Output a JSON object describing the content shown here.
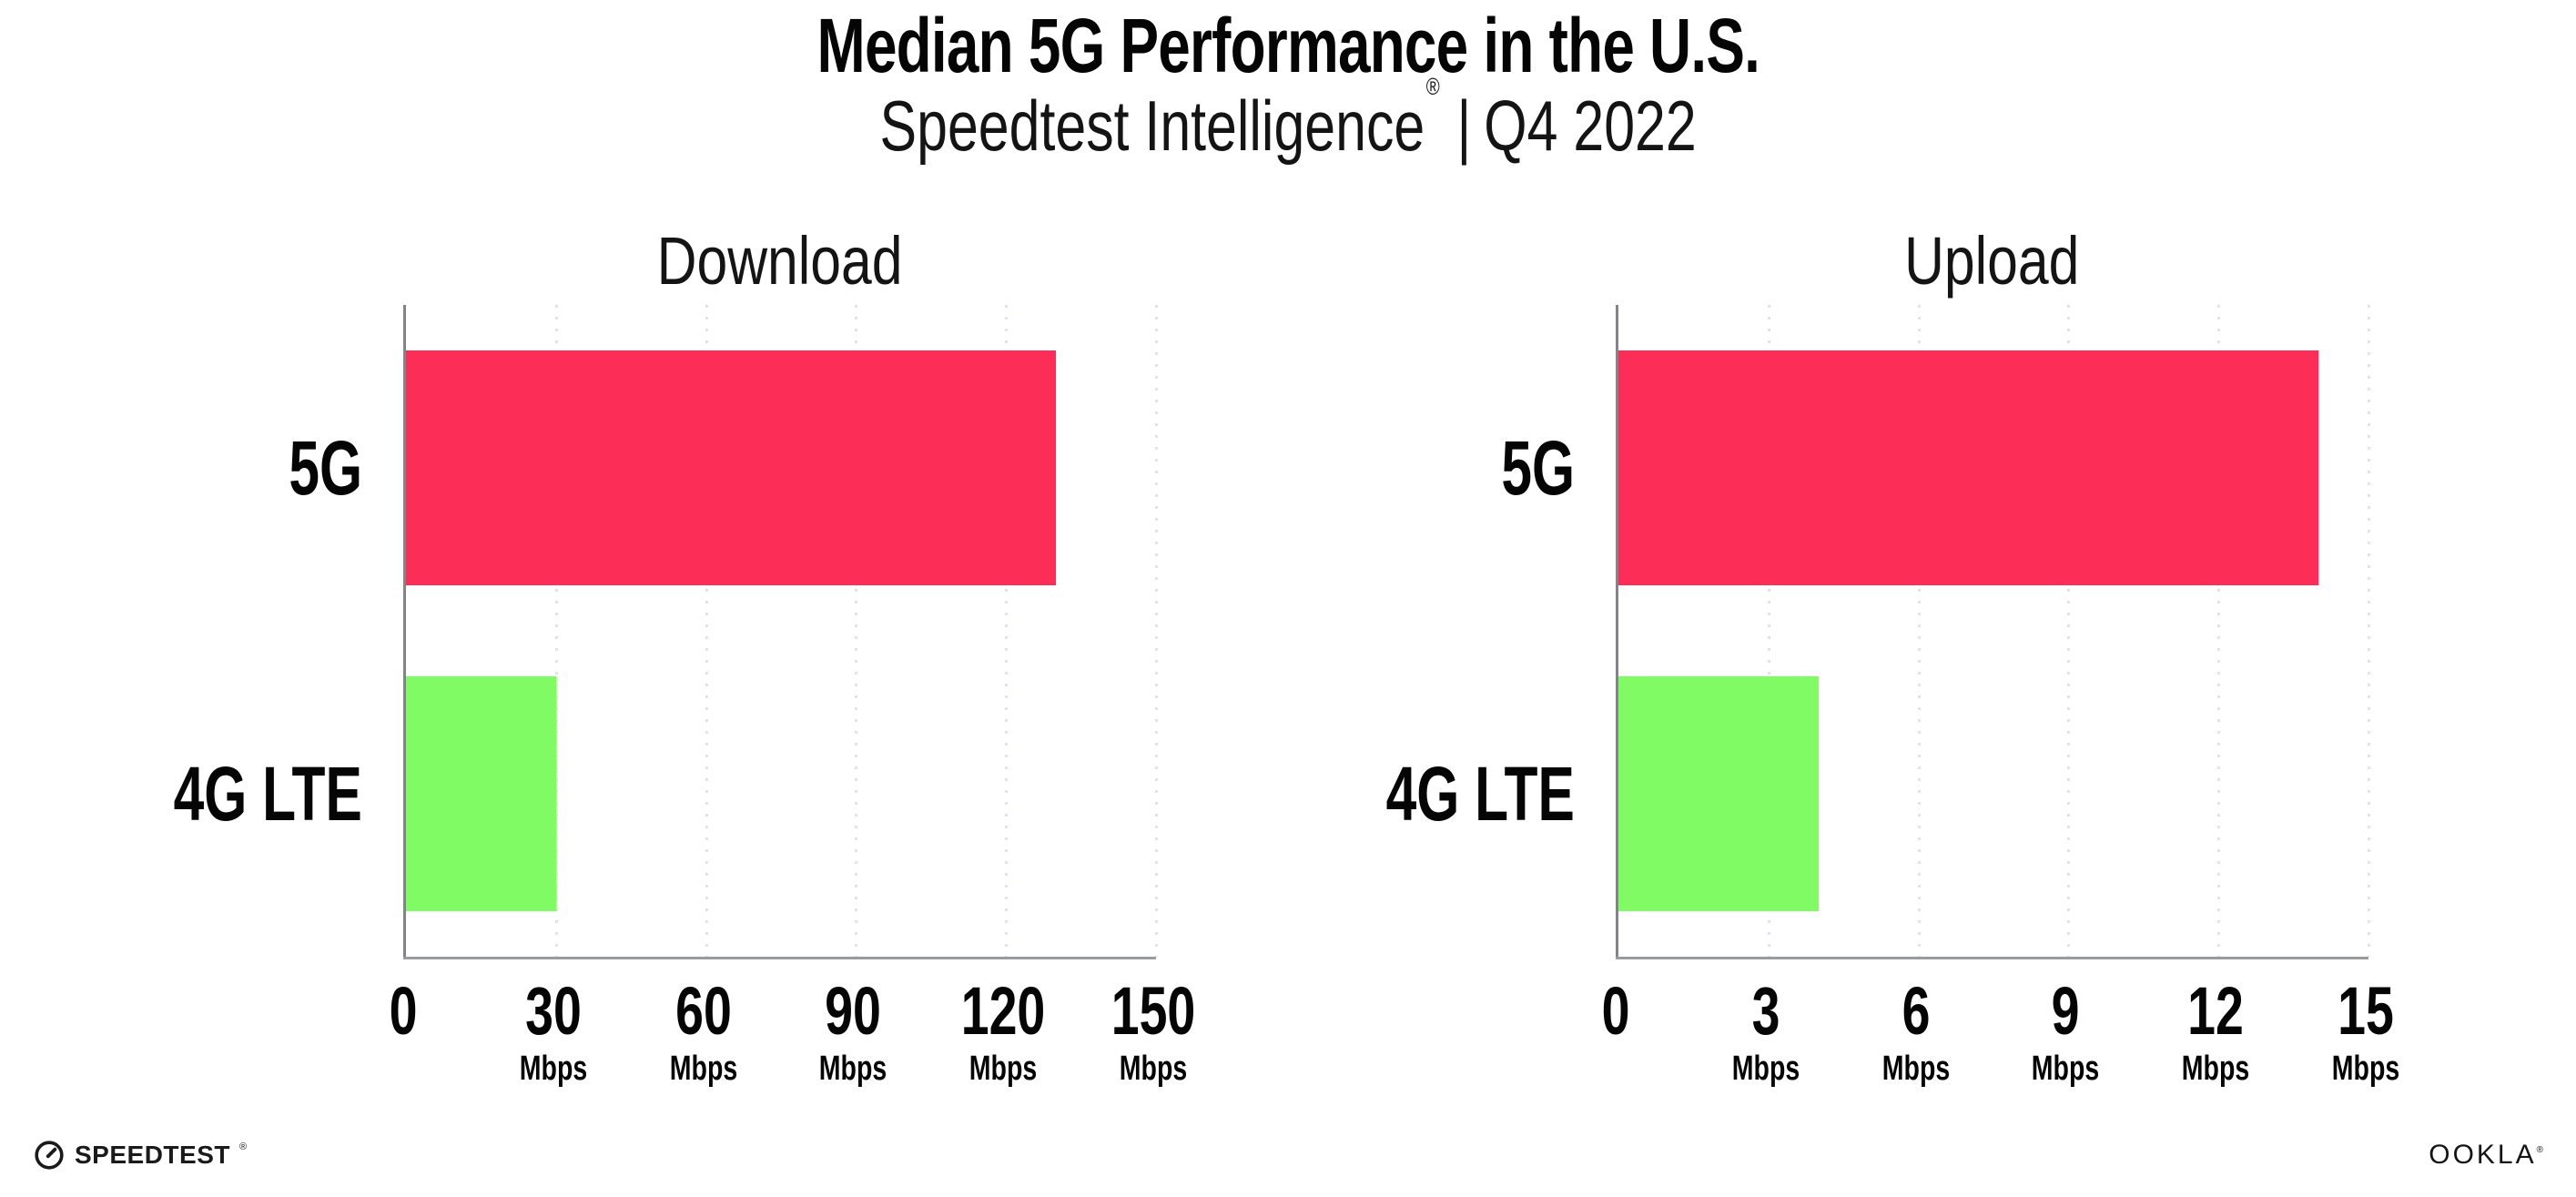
{
  "header": {
    "title": "Median 5G Performance in the U.S.",
    "subtitle_brand": "Speedtest Intelligence",
    "subtitle_reg_mark": "®",
    "subtitle_separator": "|",
    "subtitle_period": "Q4 2022"
  },
  "chart_data": [
    {
      "type": "bar",
      "orientation": "horizontal",
      "title": "Download",
      "categories": [
        "5G",
        "4G LTE"
      ],
      "values": [
        130,
        30
      ],
      "value_unit": "Mbps",
      "xlim": [
        0,
        150
      ],
      "xticks": [
        0,
        30,
        60,
        90,
        120,
        150
      ],
      "tick_unit_label": "Mbps",
      "bar_colors": [
        "#fc2e57",
        "#80fb63"
      ],
      "grid": "dotted-vertical",
      "legend": "none"
    },
    {
      "type": "bar",
      "orientation": "horizontal",
      "title": "Upload",
      "categories": [
        "5G",
        "4G LTE"
      ],
      "values": [
        14,
        4
      ],
      "value_unit": "Mbps",
      "xlim": [
        0,
        15
      ],
      "xticks": [
        0,
        3,
        6,
        9,
        12,
        15
      ],
      "tick_unit_label": "Mbps",
      "bar_colors": [
        "#fc2e57",
        "#80fb63"
      ],
      "grid": "dotted-vertical",
      "legend": "none"
    }
  ],
  "footer": {
    "speedtest_logo_text": "SPEEDTEST",
    "speedtest_trademark": "®",
    "ookla_logo_text": "OOKLA",
    "ookla_trademark": "®"
  },
  "colors": {
    "bar_5g": "#fc2e57",
    "bar_4g_lte": "#80fb63",
    "axis_line": "#8a8a92",
    "gridline_dots": "#e2e2ee",
    "text": "#0b0b0b",
    "background": "#ffffff"
  }
}
